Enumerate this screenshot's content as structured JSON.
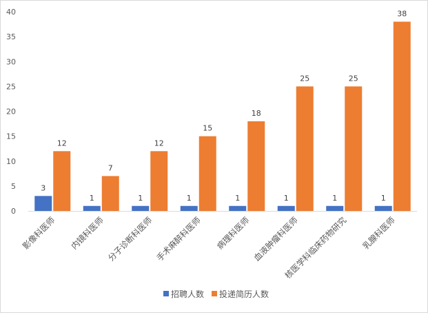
{
  "chart_data": {
    "type": "bar",
    "title": "",
    "xlabel": "",
    "ylabel": "",
    "categories": [
      "影像科医师",
      "内镜科医师",
      "分子诊断科医师",
      "手术麻醉科医师",
      "病理科医师",
      "血液肿瘤科医师",
      "核医学科临床药物研究",
      "乳腺科医师"
    ],
    "series": [
      {
        "name": "招聘人数",
        "values": [
          3,
          1,
          1,
          1,
          1,
          1,
          1,
          1
        ],
        "color": "#4472C4"
      },
      {
        "name": "投递简历人数",
        "values": [
          12,
          7,
          12,
          15,
          18,
          25,
          25,
          38
        ],
        "color": "#ED7D31"
      }
    ],
    "ylim": [
      0,
      40
    ],
    "yticks": [
      0,
      5,
      10,
      15,
      20,
      25,
      30,
      35,
      40
    ],
    "grid": false,
    "data_labels": true,
    "legend_position": "bottom"
  }
}
